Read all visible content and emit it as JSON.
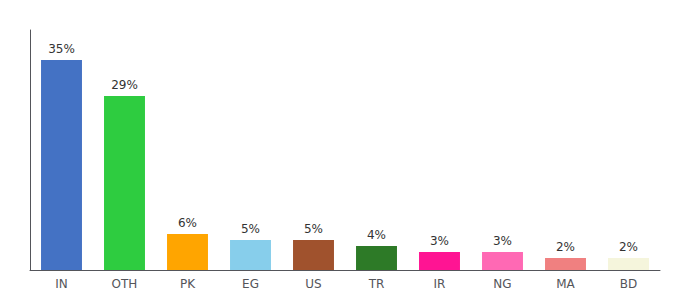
{
  "chart_data": {
    "type": "bar",
    "categories": [
      "IN",
      "OTH",
      "PK",
      "EG",
      "US",
      "TR",
      "IR",
      "NG",
      "MA",
      "BD"
    ],
    "values": [
      35,
      29,
      6,
      5,
      5,
      4,
      3,
      3,
      2,
      2
    ],
    "value_labels": [
      "35%",
      "29%",
      "6%",
      "5%",
      "5%",
      "4%",
      "3%",
      "3%",
      "2%",
      "2%"
    ],
    "data_labels": true,
    "colors": [
      "#4472C4",
      "#2ECC40",
      "#FFA500",
      "#87CEEB",
      "#A0522D",
      "#2D7A27",
      "#FF1493",
      "#FF69B4",
      "#F08080",
      "#F5F5DC"
    ],
    "ylim": [
      0,
      40
    ],
    "grid": false,
    "tick_labels": "x"
  }
}
